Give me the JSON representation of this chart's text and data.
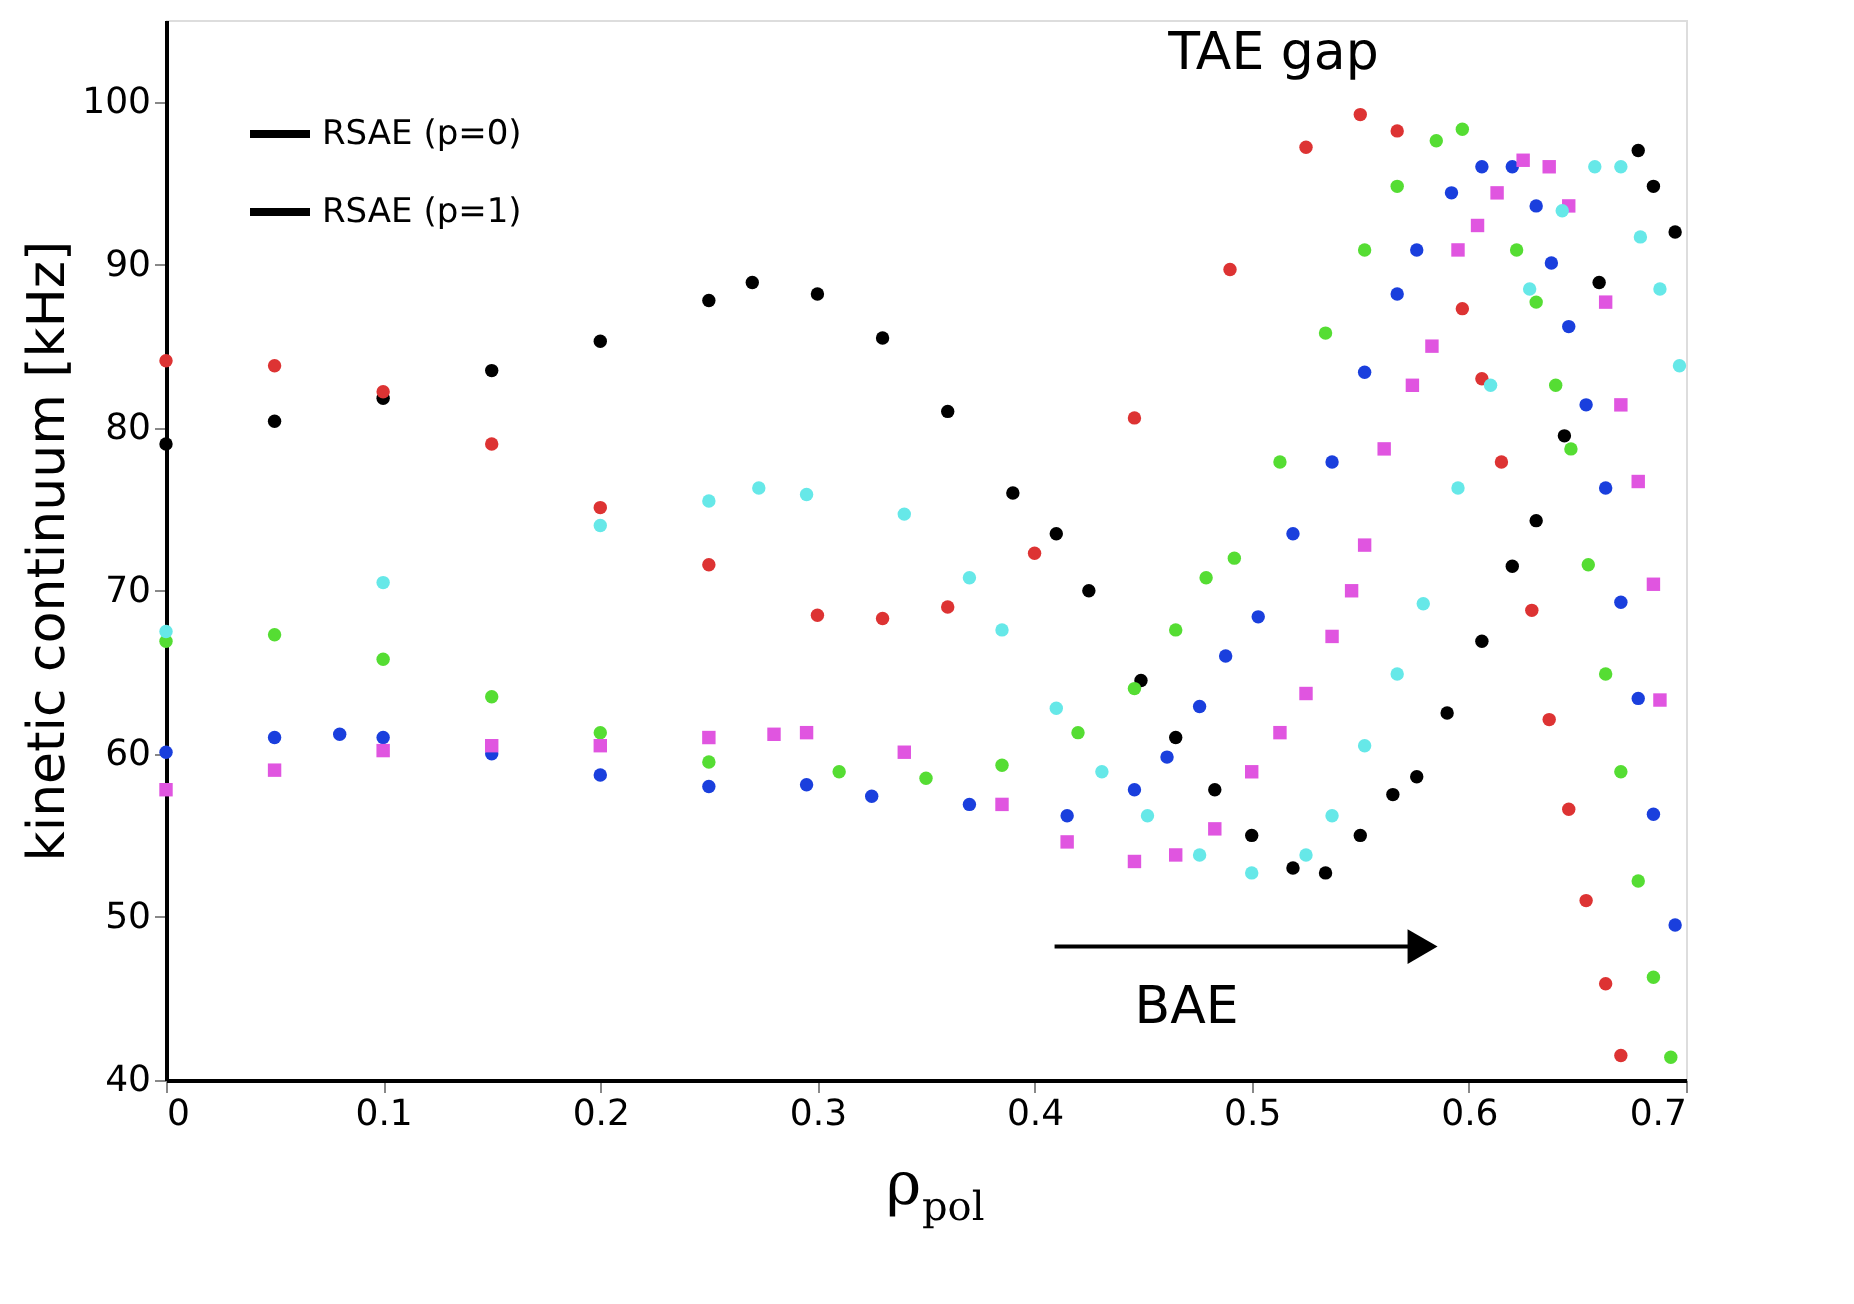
{
  "chart_data": {
    "type": "scatter",
    "xlabel": "ρ$_{pol}$",
    "ylabel": "kinetic continuum [kHz]",
    "xlim": [
      0,
      0.7
    ],
    "ylim": [
      40,
      105
    ],
    "xticks": [
      0,
      0.1,
      0.2,
      0.3,
      0.4,
      0.5,
      0.6,
      0.7
    ],
    "yticks": [
      40,
      50,
      60,
      70,
      80,
      90,
      100
    ],
    "grid": false,
    "legend": "top left",
    "marker": "circle",
    "series": [
      {
        "name": "RSAE (p=0)",
        "color": "#000000",
        "x": [
          0,
          0.05,
          0.1,
          0.15,
          0.2,
          0.25,
          0.27,
          0.3,
          0.33,
          0.36,
          0.39,
          0.41,
          0.425,
          0.449,
          0.465,
          0.483,
          0.5,
          0.519,
          0.534,
          0.55,
          0.565,
          0.576,
          0.59,
          0.606,
          0.62,
          0.631,
          0.644,
          0.66,
          0.678,
          0.685,
          0.695
        ],
        "values": [
          79,
          80.4,
          81.8,
          83.5,
          85.3,
          87.8,
          88.9,
          88.2,
          85.5,
          81,
          76,
          73.5,
          70,
          64.5,
          61,
          57.8,
          55,
          53,
          52.7,
          55,
          57.5,
          58.6,
          62.5,
          66.9,
          71.5,
          74.3,
          79.5,
          88.9,
          97,
          94.8,
          92
        ]
      },
      {
        "color": "#dd3333",
        "x": [
          0,
          0.05,
          0.1,
          0.15,
          0.2,
          0.25,
          0.3,
          0.33,
          0.36,
          0.4,
          0.446,
          0.49,
          0.525,
          0.55,
          0.567,
          0.597,
          0.606,
          0.615,
          0.629,
          0.637,
          0.646,
          0.654,
          0.663,
          0.67
        ],
        "values": [
          84.1,
          83.8,
          82.2,
          79,
          75.1,
          71.6,
          68.5,
          68.3,
          69,
          72.3,
          80.6,
          89.7,
          97.2,
          99.2,
          98.2,
          87.3,
          83,
          77.9,
          68.8,
          62.1,
          56.6,
          51,
          45.9,
          41.5
        ]
      },
      {
        "color": "#55dd33",
        "x": [
          0,
          0.05,
          0.1,
          0.15,
          0.2,
          0.25,
          0.31,
          0.35,
          0.385,
          0.42,
          0.446,
          0.465,
          0.479,
          0.492,
          0.513,
          0.534,
          0.552,
          0.567,
          0.585,
          0.597,
          0.622,
          0.631,
          0.64,
          0.647,
          0.655,
          0.663,
          0.67,
          0.678,
          0.685,
          0.693
        ],
        "values": [
          66.9,
          67.3,
          65.8,
          63.5,
          61.3,
          59.5,
          58.9,
          58.5,
          59.3,
          61.3,
          64,
          67.6,
          70.8,
          72,
          77.9,
          85.8,
          90.9,
          94.8,
          97.6,
          98.3,
          90.9,
          87.7,
          82.6,
          78.7,
          71.6,
          64.9,
          58.9,
          52.2,
          46.3,
          41.4
        ]
      },
      {
        "color": "#1a3fdd",
        "x": [
          0,
          0.05,
          0.08,
          0.1,
          0.15,
          0.2,
          0.25,
          0.295,
          0.325,
          0.37,
          0.415,
          0.446,
          0.461,
          0.476,
          0.488,
          0.503,
          0.519,
          0.537,
          0.552,
          0.567,
          0.576,
          0.592,
          0.606,
          0.62,
          0.631,
          0.638,
          0.646,
          0.654,
          0.663,
          0.67,
          0.678,
          0.685,
          0.695
        ],
        "values": [
          60.1,
          61,
          61.2,
          61,
          60,
          58.7,
          58,
          58.1,
          57.4,
          56.9,
          56.2,
          57.8,
          59.8,
          62.9,
          66,
          68.4,
          73.5,
          77.9,
          83.4,
          88.2,
          90.9,
          94.4,
          96,
          96,
          93.6,
          90.1,
          86.2,
          81.4,
          76.3,
          69.3,
          63.4,
          56.3,
          49.5
        ]
      },
      {
        "color": "#e055e0",
        "marker": "square",
        "x": [
          0,
          0.05,
          0.1,
          0.15,
          0.2,
          0.25,
          0.28,
          0.295,
          0.34,
          0.385,
          0.415,
          0.446,
          0.465,
          0.483,
          0.5,
          0.513,
          0.525,
          0.537,
          0.546,
          0.552,
          0.561,
          0.574,
          0.583,
          0.595,
          0.604,
          0.613,
          0.625,
          0.637,
          0.646,
          0.663,
          0.67,
          0.678,
          0.685,
          0.688
        ],
        "values": [
          57.8,
          59,
          60.2,
          60.5,
          60.5,
          61,
          61.2,
          61.3,
          60.1,
          56.9,
          54.6,
          53.4,
          53.8,
          55.4,
          58.9,
          61.3,
          63.7,
          67.2,
          70,
          72.8,
          78.7,
          82.6,
          85,
          90.9,
          92.4,
          94.4,
          96.4,
          96,
          93.6,
          87.7,
          81.4,
          76.7,
          70.4,
          63.3
        ]
      },
      {
        "color": "#66e8e8",
        "x": [
          0,
          0.1,
          0.2,
          0.25,
          0.273,
          0.295,
          0.34,
          0.37,
          0.385,
          0.41,
          0.431,
          0.452,
          0.476,
          0.5,
          0.525,
          0.537,
          0.552,
          0.567,
          0.579,
          0.595,
          0.61,
          0.628,
          0.643,
          0.658,
          0.67,
          0.679,
          0.688,
          0.697
        ],
        "values": [
          67.5,
          70.5,
          74,
          75.5,
          76.3,
          75.9,
          74.7,
          70.8,
          67.6,
          62.8,
          58.9,
          56.2,
          53.8,
          52.7,
          53.8,
          56.2,
          60.5,
          64.9,
          69.2,
          76.3,
          82.6,
          88.5,
          93.3,
          96,
          96,
          91.7,
          88.5,
          83.8
        ]
      }
    ],
    "annotations": [
      "RSAE (p=1)",
      "TAE gap",
      "BAE"
    ]
  }
}
